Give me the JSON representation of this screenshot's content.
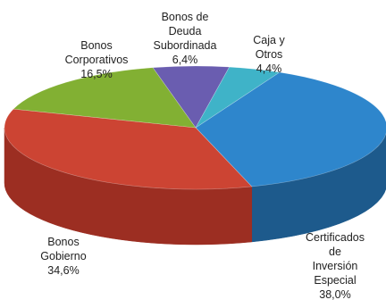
{
  "chart_data": {
    "type": "pie",
    "style": "3d",
    "slices": [
      {
        "label": [
          "Certificados",
          "de",
          "Inversión",
          "Especial"
        ],
        "value_label": "38,0%",
        "value": 38.0,
        "color": "#2e86cc",
        "side_color": "#1d5a8c"
      },
      {
        "label": [
          "Bonos",
          "Gobierno"
        ],
        "value_label": "34,6%",
        "value": 34.6,
        "color": "#cc4433",
        "side_color": "#9c2e22"
      },
      {
        "label": [
          "Bonos",
          "Corporativos"
        ],
        "value_label": "16,5%",
        "value": 16.5,
        "color": "#82b033",
        "side_color": "#5f8424"
      },
      {
        "label": [
          "Bonos de",
          "Deuda",
          "Subordinada"
        ],
        "value_label": "6,4%",
        "value": 6.4,
        "color": "#6a5db0",
        "side_color": "#4a4083"
      },
      {
        "label": [
          "Caja y",
          "Otros"
        ],
        "value_label": "4,4%",
        "value": 4.4,
        "color": "#3fb3c8",
        "side_color": "#2a8191"
      }
    ]
  }
}
